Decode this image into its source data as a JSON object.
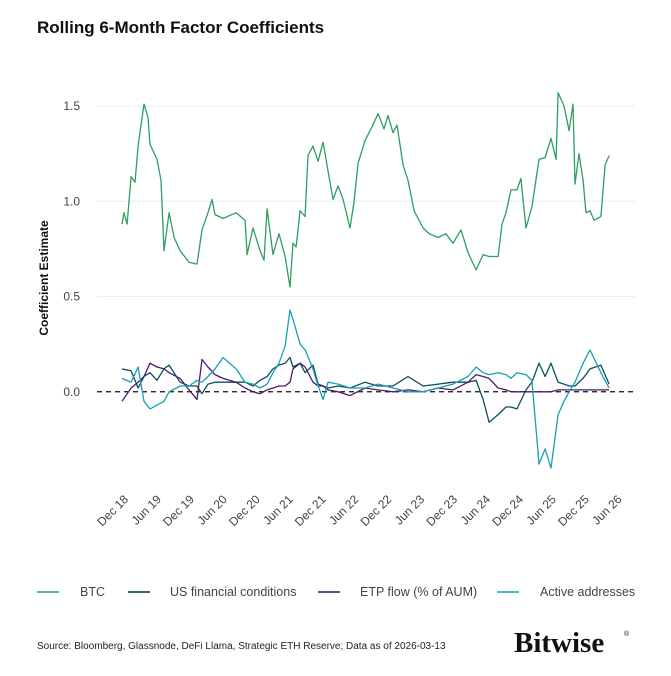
{
  "chart_data": {
    "type": "line",
    "title": "Rolling 6-Month Factor Coefficients",
    "xlabel": "",
    "ylabel": "Coefficient Estimate",
    "ylim": [
      -0.5,
      1.6
    ],
    "xlim": [
      "2018-05-15",
      "2026-07-18"
    ],
    "yticks": [
      0.0,
      0.5,
      1.0,
      1.5
    ],
    "ytick_labels": [
      "0.0",
      "0.5",
      "1.0",
      "1.5"
    ],
    "xticks": [
      "2018-12-01",
      "2019-06-01",
      "2019-12-01",
      "2020-06-01",
      "2020-12-01",
      "2021-06-01",
      "2021-12-01",
      "2022-06-01",
      "2022-12-01",
      "2023-06-01",
      "2023-12-01",
      "2024-06-01",
      "2024-12-01",
      "2025-06-01",
      "2025-12-01",
      "2026-06-01"
    ],
    "xtick_labels": [
      "Dec 18",
      "Jun 19",
      "Dec 19",
      "Jun 20",
      "Dec 20",
      "Jun 21",
      "Dec 21",
      "Jun 22",
      "Dec 22",
      "Jun 23",
      "Dec 23",
      "Jun 24",
      "Dec 24",
      "Jun 25",
      "Dec 25",
      "Jun 26"
    ],
    "grid": "horizontal",
    "reference_line": {
      "y": 0,
      "style": "dashed"
    },
    "legend_placement": "bottom",
    "series": [
      {
        "name": "BTC",
        "color": "#2e9e62",
        "x": [
          "2018-10-01",
          "2018-10-12",
          "2018-10-29",
          "2018-11-20",
          "2018-12-12",
          "2018-12-29",
          "2019-01-31",
          "2019-02-22",
          "2019-03-05",
          "2019-04-13",
          "2019-05-05",
          "2019-05-22",
          "2019-06-19",
          "2019-07-17",
          "2019-08-19",
          "2019-10-08",
          "2019-11-21",
          "2019-12-19",
          "2020-01-21",
          "2020-02-12",
          "2020-02-29",
          "2020-04-14",
          "2020-06-25",
          "2020-08-14",
          "2020-08-25",
          "2020-09-27",
          "2020-11-05",
          "2020-11-27",
          "2020-12-14",
          "2021-01-16",
          "2021-02-18",
          "2021-03-24",
          "2021-04-20",
          "2021-05-07",
          "2021-05-24",
          "2021-06-15",
          "2021-07-13",
          "2021-07-29",
          "2021-08-26",
          "2021-09-23",
          "2021-10-21",
          "2021-11-17",
          "2021-12-15",
          "2022-01-12",
          "2022-02-09",
          "2022-03-19",
          "2022-04-11",
          "2022-05-03",
          "2022-06-11",
          "2022-07-14",
          "2022-08-22",
          "2022-09-24",
          "2022-10-16",
          "2022-11-13",
          "2022-12-05",
          "2023-01-08",
          "2023-02-04",
          "2023-03-10",
          "2023-04-29",
          "2023-06-01",
          "2023-07-21",
          "2023-09-03",
          "2023-10-12",
          "2023-11-25",
          "2024-01-03",
          "2024-02-17",
          "2024-03-27",
          "2024-04-29",
          "2024-06-18",
          "2024-07-10",
          "2024-08-01",
          "2024-08-29",
          "2024-10-01",
          "2024-10-23",
          "2024-11-20",
          "2024-12-23",
          "2025-01-31",
          "2025-03-06",
          "2025-04-08",
          "2025-05-06",
          "2025-05-17",
          "2025-06-19",
          "2025-07-17",
          "2025-08-08",
          "2025-08-19",
          "2025-09-10",
          "2025-10-03",
          "2025-10-19",
          "2025-11-10",
          "2025-12-03",
          "2026-01-10",
          "2026-02-02",
          "2026-02-24"
        ],
        "y": [
          0.88,
          0.94,
          0.88,
          1.13,
          1.1,
          1.29,
          1.51,
          1.44,
          1.3,
          1.22,
          1.11,
          0.74,
          0.94,
          0.81,
          0.74,
          0.68,
          0.67,
          0.85,
          0.94,
          1.01,
          0.93,
          0.91,
          0.94,
          0.9,
          0.72,
          0.86,
          0.74,
          0.69,
          0.96,
          0.72,
          0.83,
          0.71,
          0.55,
          0.78,
          0.76,
          0.95,
          0.92,
          1.24,
          1.29,
          1.21,
          1.31,
          1.16,
          1.01,
          1.08,
          1.01,
          0.86,
          1.0,
          1.2,
          1.32,
          1.38,
          1.46,
          1.38,
          1.45,
          1.36,
          1.4,
          1.19,
          1.11,
          0.95,
          0.86,
          0.83,
          0.81,
          0.83,
          0.78,
          0.85,
          0.73,
          0.64,
          0.72,
          0.71,
          0.71,
          0.88,
          0.94,
          1.06,
          1.06,
          1.12,
          0.86,
          0.97,
          1.22,
          1.23,
          1.33,
          1.22,
          1.57,
          1.5,
          1.37,
          1.51,
          1.09,
          1.25,
          1.11,
          0.94,
          0.95,
          0.9,
          0.92,
          1.19,
          1.24
        ]
      },
      {
        "name": "US financial conditions",
        "color": "#0b4f5c",
        "x": [
          "2018-10-01",
          "2018-11-20",
          "2018-12-29",
          "2019-01-31",
          "2019-03-05",
          "2019-04-13",
          "2019-05-22",
          "2019-06-19",
          "2019-08-19",
          "2019-10-08",
          "2019-11-21",
          "2019-12-19",
          "2020-01-21",
          "2020-02-29",
          "2020-04-14",
          "2020-06-25",
          "2020-08-14",
          "2020-09-27",
          "2020-11-05",
          "2020-12-14",
          "2021-01-16",
          "2021-02-18",
          "2021-03-24",
          "2021-04-20",
          "2021-05-07",
          "2021-06-15",
          "2021-07-13",
          "2021-08-26",
          "2021-09-23",
          "2021-10-21",
          "2021-11-17",
          "2022-01-12",
          "2022-03-19",
          "2022-06-11",
          "2022-08-22",
          "2022-11-13",
          "2023-02-04",
          "2023-04-29",
          "2023-07-21",
          "2023-10-12",
          "2024-01-03",
          "2024-02-17",
          "2024-03-27",
          "2024-04-29",
          "2024-06-18",
          "2024-08-01",
          "2024-08-29",
          "2024-10-01",
          "2024-11-20",
          "2024-12-23",
          "2025-01-31",
          "2025-03-06",
          "2025-04-08",
          "2025-05-17",
          "2025-06-19",
          "2025-07-17",
          "2025-08-19",
          "2025-10-03",
          "2025-11-10",
          "2026-01-10",
          "2026-02-24"
        ],
        "y": [
          0.12,
          0.11,
          0.02,
          0.08,
          0.1,
          0.06,
          0.12,
          0.14,
          0.05,
          0.03,
          0.03,
          -0.01,
          0.04,
          0.05,
          0.05,
          0.05,
          0.05,
          0.03,
          0.06,
          0.08,
          0.12,
          0.14,
          0.15,
          0.18,
          0.13,
          0.15,
          0.1,
          0.14,
          0.04,
          0.03,
          0.02,
          0.03,
          0.02,
          0.05,
          0.03,
          0.03,
          0.08,
          0.03,
          0.04,
          0.05,
          0.05,
          0.06,
          -0.04,
          -0.16,
          -0.12,
          -0.08,
          -0.08,
          -0.09,
          0.01,
          0.05,
          0.15,
          0.08,
          0.15,
          0.05,
          0.04,
          0.03,
          0.03,
          0.07,
          0.12,
          0.14,
          0.04
        ]
      },
      {
        "name": "ETP flow (% of AUM)",
        "color": "#4b1c6b",
        "x": [
          "2018-10-01",
          "2018-11-20",
          "2018-12-29",
          "2019-01-31",
          "2019-03-05",
          "2019-04-13",
          "2019-05-22",
          "2019-06-19",
          "2019-08-19",
          "2019-10-08",
          "2019-11-21",
          "2019-12-19",
          "2020-01-21",
          "2020-02-29",
          "2020-04-14",
          "2020-06-25",
          "2020-08-14",
          "2020-09-27",
          "2020-11-05",
          "2020-12-14",
          "2021-01-16",
          "2021-02-18",
          "2021-03-24",
          "2021-04-20",
          "2021-05-07",
          "2021-06-15",
          "2021-07-13",
          "2021-08-26",
          "2021-09-23",
          "2021-10-21",
          "2021-11-17",
          "2022-01-12",
          "2022-03-19",
          "2022-06-11",
          "2022-08-22",
          "2022-11-13",
          "2023-02-04",
          "2023-04-29",
          "2023-07-21",
          "2023-10-12",
          "2024-01-03",
          "2024-02-17",
          "2024-03-27",
          "2024-04-29",
          "2024-06-18",
          "2024-08-01",
          "2024-08-29",
          "2024-10-01",
          "2024-11-20",
          "2024-12-23",
          "2025-01-31",
          "2025-03-06",
          "2025-04-08",
          "2025-05-17",
          "2025-06-19",
          "2025-07-17",
          "2025-08-19",
          "2025-10-03",
          "2025-11-10",
          "2026-01-10",
          "2026-02-24"
        ],
        "y": [
          -0.05,
          0.02,
          0.05,
          0.08,
          0.15,
          0.13,
          0.12,
          0.1,
          0.07,
          0.01,
          -0.04,
          0.17,
          0.13,
          0.09,
          0.07,
          0.05,
          0.02,
          0.0,
          -0.01,
          0.01,
          0.02,
          0.03,
          0.03,
          0.05,
          0.12,
          0.15,
          0.13,
          0.05,
          0.03,
          0.03,
          0.01,
          0.0,
          -0.02,
          0.02,
          0.01,
          0.0,
          0.01,
          0.0,
          0.02,
          0.01,
          0.05,
          0.09,
          0.08,
          0.07,
          0.02,
          0.01,
          0.0,
          0.0,
          0.0,
          0.0,
          0.0,
          0.0,
          0.0,
          0.01,
          0.01,
          0.01,
          0.01,
          0.01,
          0.01,
          0.01,
          0.01
        ]
      },
      {
        "name": "Active addresses",
        "color": "#1a9fb5",
        "x": [
          "2018-10-01",
          "2018-11-20",
          "2018-12-29",
          "2019-01-31",
          "2019-03-05",
          "2019-04-13",
          "2019-05-22",
          "2019-06-19",
          "2019-08-19",
          "2019-10-08",
          "2019-11-21",
          "2019-12-19",
          "2020-01-21",
          "2020-02-29",
          "2020-04-14",
          "2020-06-25",
          "2020-08-14",
          "2020-09-27",
          "2020-11-05",
          "2020-12-14",
          "2021-01-16",
          "2021-02-18",
          "2021-03-24",
          "2021-04-20",
          "2021-05-07",
          "2021-06-15",
          "2021-07-13",
          "2021-08-26",
          "2021-09-23",
          "2021-10-21",
          "2021-11-17",
          "2022-01-12",
          "2022-03-19",
          "2022-06-11",
          "2022-08-22",
          "2022-11-13",
          "2023-02-04",
          "2023-04-29",
          "2023-07-21",
          "2023-10-12",
          "2024-01-03",
          "2024-02-17",
          "2024-03-27",
          "2024-04-29",
          "2024-06-18",
          "2024-08-01",
          "2024-08-29",
          "2024-10-01",
          "2024-11-20",
          "2024-12-23",
          "2025-01-31",
          "2025-03-06",
          "2025-04-08",
          "2025-05-17",
          "2025-06-19",
          "2025-07-17",
          "2025-08-19",
          "2025-10-03",
          "2025-11-10",
          "2026-01-10",
          "2026-02-24"
        ],
        "y": [
          0.07,
          0.05,
          0.13,
          -0.05,
          -0.09,
          -0.07,
          -0.05,
          0.0,
          0.03,
          0.03,
          0.06,
          0.05,
          0.08,
          0.12,
          0.18,
          0.12,
          0.05,
          0.04,
          0.02,
          0.04,
          0.1,
          0.15,
          0.24,
          0.43,
          0.38,
          0.25,
          0.22,
          0.12,
          0.03,
          -0.04,
          0.05,
          0.04,
          0.02,
          0.02,
          0.04,
          0.02,
          0.0,
          0.0,
          0.02,
          0.04,
          0.08,
          0.13,
          0.1,
          0.09,
          0.1,
          0.09,
          0.07,
          0.1,
          0.09,
          0.06,
          -0.38,
          -0.3,
          -0.4,
          -0.12,
          -0.05,
          0.0,
          0.05,
          0.15,
          0.22,
          0.1,
          0.02
        ]
      }
    ]
  },
  "legend": {
    "items": [
      {
        "label": "BTC",
        "color": "#5fb88a"
      },
      {
        "label": "US financial conditions",
        "color": "#2e6b74"
      },
      {
        "label": "ETP flow (% of AUM)",
        "color": "#6a4a86"
      },
      {
        "label": "Active addresses",
        "color": "#4cb3c4"
      }
    ]
  },
  "footer": {
    "source": "Source: Bloomberg, Glassnode, DeFi Llama, Strategic ETH Reserve; Data as of 2026-03-13",
    "logo": "Bitwise"
  }
}
